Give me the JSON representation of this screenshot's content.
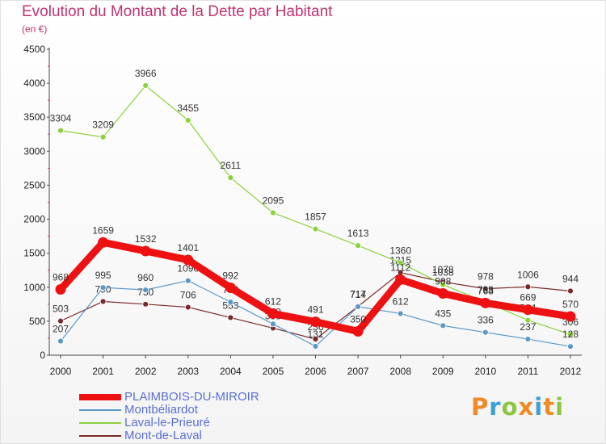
{
  "header": {
    "title": "Evolution du Montant de la Dette par Habitant",
    "subtitle": "(en €)"
  },
  "logo": {
    "text": "Proxiti",
    "colors": [
      "#f08a24",
      "#3aa0d8",
      "#8cc63f",
      "#f08a24",
      "#3aa0d8",
      "#f08a24",
      "#8cc63f"
    ]
  },
  "chart_data": {
    "type": "line",
    "title": "Evolution du Montant de la Dette par Habitant",
    "subtitle": "(en €)",
    "xlabel": "",
    "ylabel": "",
    "x": [
      "2000",
      "2001",
      "2002",
      "2003",
      "2004",
      "2005",
      "2006",
      "2007",
      "2008",
      "2009",
      "2010",
      "2011",
      "2012"
    ],
    "ylim": [
      0,
      4500
    ],
    "yticks": [
      0,
      500,
      1000,
      1500,
      2000,
      2500,
      3000,
      3500,
      4000,
      4500
    ],
    "grid": false,
    "legend_position": "bottom-left",
    "series": [
      {
        "name": "Mont-de-Laval",
        "color": "#7a2a2a",
        "values": [
          503,
          790,
          750,
          706,
          553,
          398,
          236,
          717,
          1215,
          1078,
          978,
          1006,
          944
        ]
      },
      {
        "name": "Laval-le-Prieuré",
        "color": "#8cd13c",
        "values": [
          3304,
          3209,
          3966,
          3455,
          2611,
          2095,
          1857,
          1613,
          1360,
          1038,
          783,
          514,
          306
        ]
      },
      {
        "name": "Montbéliardot",
        "color": "#5a98c8",
        "values": [
          207,
          995,
          960,
          1096,
          782,
          459,
          131,
          714,
          612,
          435,
          336,
          237,
          128
        ]
      },
      {
        "name": "PLAIMBOIS-DU-MIROIR",
        "color": "#ee1111",
        "values": [
          968,
          1659,
          1532,
          1401,
          992,
          612,
          491,
          350,
          1112,
          908,
          768,
          669,
          570
        ]
      }
    ]
  }
}
